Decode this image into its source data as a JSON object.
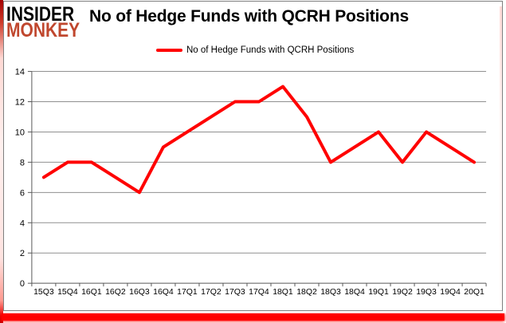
{
  "logo": {
    "line1": "INSIDER",
    "line2": "MONKEY",
    "line2_color": "#c0472e"
  },
  "title": "No of Hedge Funds with QCRH Positions",
  "legend": {
    "label": "No of Hedge Funds with QCRH Positions",
    "marker_color": "#ff0000"
  },
  "colors": {
    "series_line": "#ff0000",
    "gridline": "#909090",
    "axis": "#595959",
    "brand_red": "#ff0000",
    "chart_border": "#7f7f7f"
  },
  "chart_data": {
    "type": "line",
    "title": "No of Hedge Funds with QCRH Positions",
    "categories": [
      "15Q3",
      "15Q4",
      "16Q1",
      "16Q2",
      "16Q3",
      "16Q4",
      "17Q1",
      "17Q2",
      "17Q3",
      "17Q4",
      "18Q1",
      "18Q2",
      "18Q3",
      "18Q4",
      "19Q1",
      "19Q2",
      "19Q3",
      "19Q4",
      "20Q1"
    ],
    "series": [
      {
        "name": "No of Hedge Funds with QCRH Positions",
        "color": "#ff0000",
        "values": [
          7,
          8,
          8,
          7,
          6,
          9,
          10,
          11,
          12,
          12,
          13,
          11,
          8,
          9,
          10,
          8,
          10,
          9,
          8
        ]
      }
    ],
    "xlabel": "",
    "ylabel": "",
    "ylim": [
      0,
      14
    ],
    "ytick_step": 2,
    "grid": true,
    "legend_position": "top"
  }
}
